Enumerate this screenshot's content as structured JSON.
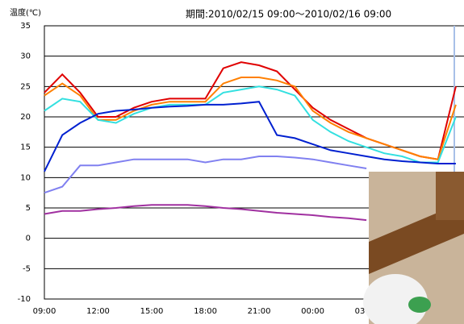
{
  "chart_data": {
    "type": "line",
    "title": "期間:2010/02/15 09:00〜2010/02/16 09:00",
    "y_label": "温度(℃)",
    "x": [
      "09:00",
      "10:00",
      "11:00",
      "12:00",
      "13:00",
      "14:00",
      "15:00",
      "16:00",
      "17:00",
      "18:00",
      "19:00",
      "20:00",
      "21:00",
      "22:00",
      "23:00",
      "00:00",
      "01:00",
      "02:00",
      "03:00",
      "04:00",
      "05:00",
      "06:00",
      "07:00",
      "08:00"
    ],
    "x_tick_every": 3,
    "ylim": [
      -10,
      35
    ],
    "yticks": [
      -10,
      -5,
      0,
      5,
      10,
      15,
      20,
      25,
      30,
      35
    ],
    "grid": true,
    "series": [
      {
        "color": "#e00000",
        "values": [
          24,
          27,
          24,
          20,
          20,
          21.5,
          22.5,
          23,
          23,
          23,
          28,
          29,
          28.5,
          27.5,
          24.5,
          21.5,
          19.5,
          18,
          16.5,
          15.5,
          14.5,
          13.5,
          13,
          25
        ]
      },
      {
        "color": "#ff8000",
        "values": [
          23.5,
          25.5,
          23.5,
          19.5,
          19.5,
          21,
          22,
          22.5,
          22.5,
          22.5,
          25.5,
          26.5,
          26.5,
          26,
          25,
          21,
          19,
          17.5,
          16.5,
          15.5,
          14.5,
          13.5,
          13,
          22
        ]
      },
      {
        "color": "#33e0e0",
        "values": [
          21,
          23,
          22.5,
          19.5,
          19,
          20.5,
          21.5,
          22,
          22,
          22,
          24,
          24.5,
          25,
          24.5,
          23.5,
          19.5,
          17.5,
          16,
          15,
          14,
          13.5,
          12.5,
          12.5,
          20
        ]
      },
      {
        "color": "#0020d0",
        "values": [
          11,
          17,
          19,
          20.5,
          21,
          21.2,
          21.5,
          21.7,
          21.8,
          22,
          22,
          22.2,
          22.5,
          17,
          16.5,
          15.5,
          14.5,
          14,
          13.5,
          13,
          12.7,
          12.5,
          12.3,
          12.3
        ]
      },
      {
        "color": "#8080f0",
        "values": [
          7.5,
          8.5,
          12,
          12,
          12.5,
          13,
          13,
          13,
          13,
          12.5,
          13,
          13,
          13.5,
          13.5,
          13.3,
          13,
          12.5,
          12,
          11.5,
          null,
          null,
          null,
          null,
          null
        ]
      },
      {
        "color": "#a030a0",
        "values": [
          4,
          4.5,
          4.5,
          4.8,
          5,
          5.3,
          5.5,
          5.5,
          5.5,
          5.3,
          5,
          4.8,
          4.5,
          4.2,
          4,
          3.8,
          3.5,
          3.3,
          3,
          null,
          null,
          null,
          null,
          null
        ]
      }
    ]
  }
}
